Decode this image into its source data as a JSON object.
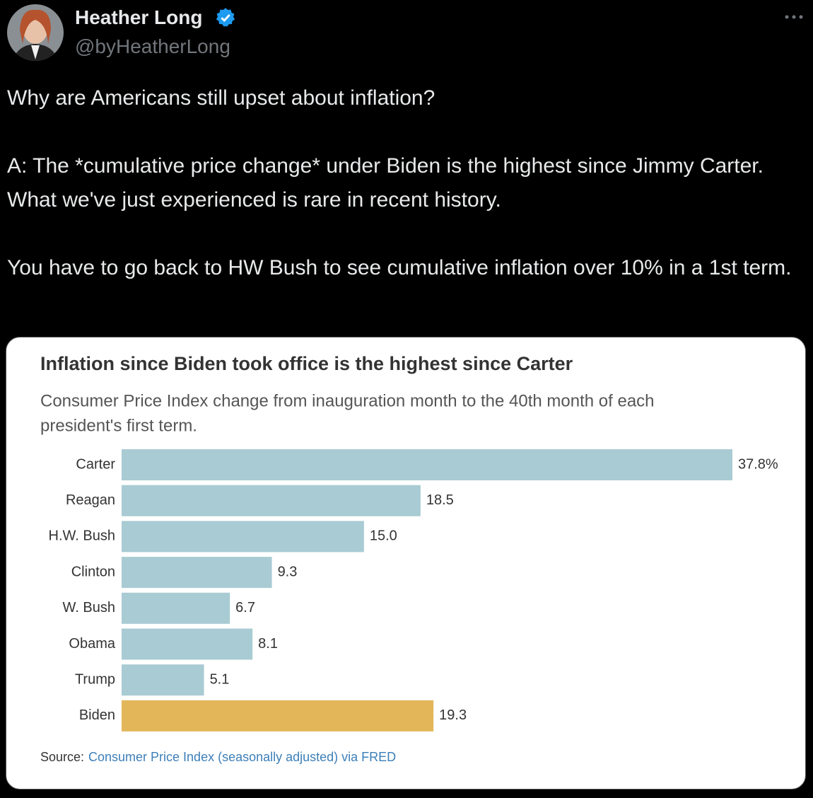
{
  "tweet": {
    "author": "Heather Long",
    "handle": "@byHeatherLong",
    "paragraphs": [
      "Why are Americans still upset about inflation?",
      "A: The *cumulative price change* under Biden is the highest since Jimmy Carter. What we've just experienced is rare in recent history.",
      "You have to go back to HW Bush to see cumulative inflation over 10% in a 1st term."
    ]
  },
  "chart_data": {
    "type": "barh",
    "title": "Inflation since Biden took office is the highest since Carter",
    "subtitle": [
      "Consumer Price Index change from inauguration month to the 40th month of each",
      "president's first term."
    ],
    "categories": [
      "Carter",
      "Reagan",
      "H.W. Bush",
      "Clinton",
      "W. Bush",
      "Obama",
      "Trump",
      "Biden"
    ],
    "values": [
      37.8,
      18.5,
      15.0,
      9.3,
      6.7,
      8.1,
      5.1,
      19.3
    ],
    "value_labels": [
      "37.8%",
      "18.5",
      "15.0",
      "9.3",
      "6.7",
      "8.1",
      "5.1",
      "19.3"
    ],
    "colors": [
      "#a9cbd3",
      "#a9cbd3",
      "#a9cbd3",
      "#a9cbd3",
      "#a9cbd3",
      "#a9cbd3",
      "#a9cbd3",
      "#e2b659"
    ],
    "source_label": "Source:",
    "source": "Consumer Price Index (seasonally adjusted) via FRED"
  }
}
